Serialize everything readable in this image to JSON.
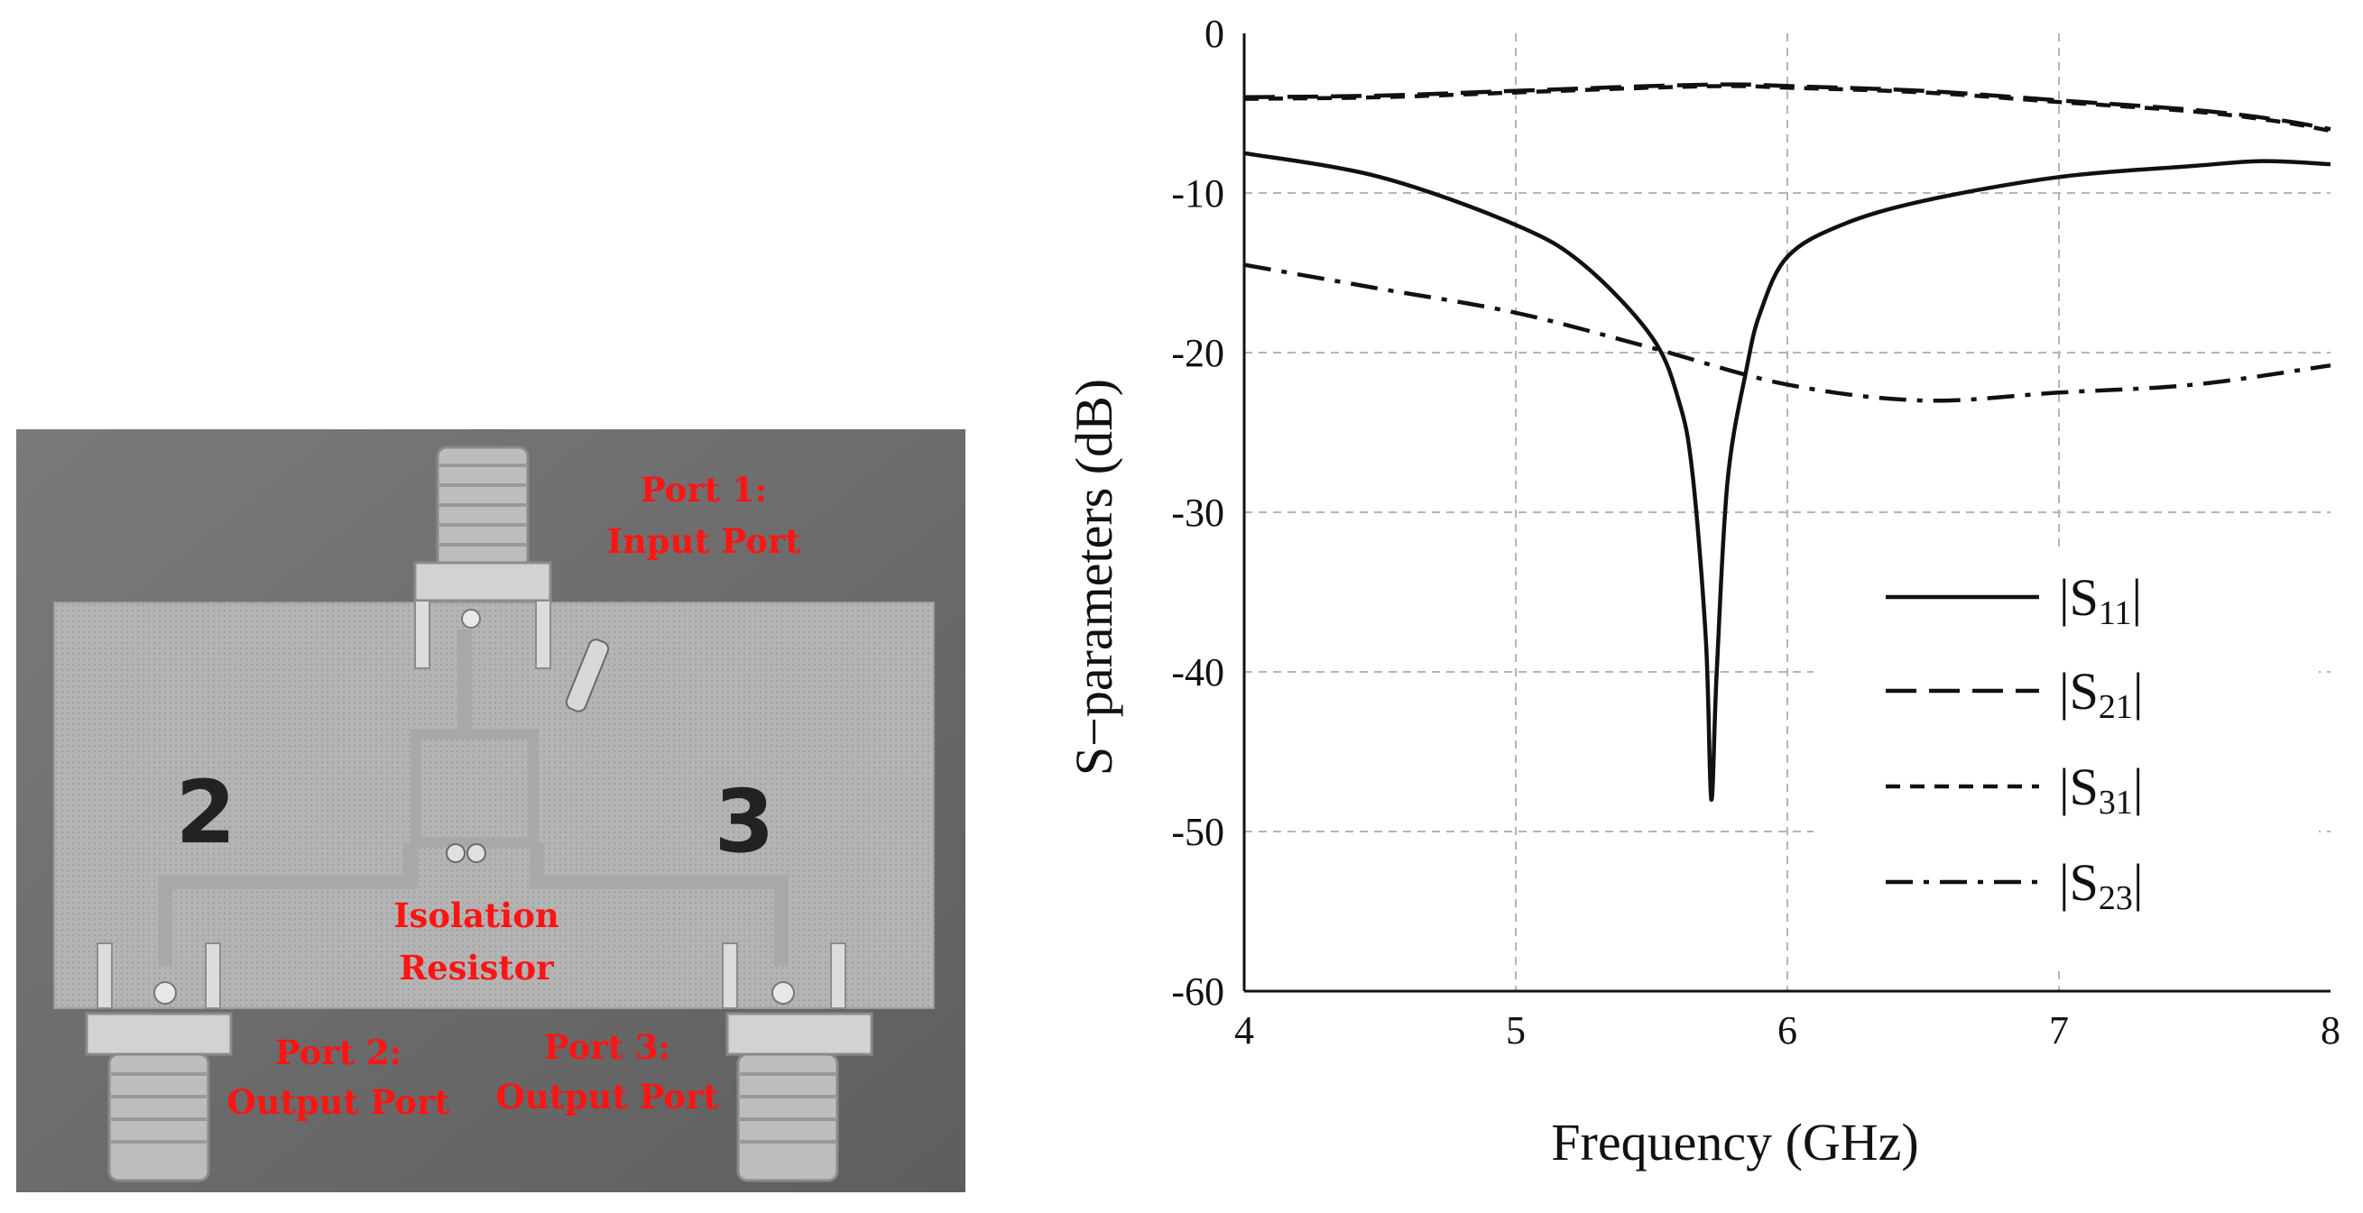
{
  "photo": {
    "labels": {
      "port1_line1": "Port 1:",
      "port1_line2": "Input Port",
      "num2": "2",
      "num3": "3",
      "iso_line1": "Isolation",
      "iso_line2": "Resistor",
      "port2_line1": "Port 2:",
      "port2_line2": "Output Port",
      "port3_line1": "Port 3:",
      "port3_line2": "Output Port"
    },
    "colors": {
      "label": "#ff1414",
      "background": "#6f6f6f",
      "board": "#b6b6b6"
    }
  },
  "chart_data": {
    "type": "line",
    "xlabel": "Frequency (GHz)",
    "ylabel": "S−parameters (dB)",
    "xlim": [
      4,
      8
    ],
    "ylim": [
      -60,
      0
    ],
    "xticks": [
      4,
      5,
      6,
      7,
      8
    ],
    "yticks": [
      0,
      -10,
      -20,
      -30,
      -40,
      -50,
      -60
    ],
    "grid": true,
    "legend_position": "bottom-right",
    "series": [
      {
        "name": "S11",
        "style": "solid",
        "x": [
          4.0,
          4.5,
          5.0,
          5.25,
          5.5,
          5.6,
          5.65,
          5.7,
          5.72,
          5.74,
          5.78,
          5.85,
          5.9,
          6.0,
          6.2,
          6.5,
          7.0,
          7.5,
          7.75,
          8.0
        ],
        "y": [
          -7.5,
          -9.0,
          -12.0,
          -14.5,
          -19.0,
          -23.0,
          -27.5,
          -38.0,
          -48.0,
          -40.0,
          -28.0,
          -21.0,
          -17.5,
          -14.0,
          -12.0,
          -10.5,
          -9.0,
          -8.3,
          -8.0,
          -8.2
        ]
      },
      {
        "name": "S21",
        "style": "longdash",
        "x": [
          4.0,
          4.5,
          5.0,
          5.5,
          5.8,
          6.0,
          6.5,
          7.0,
          7.5,
          7.8,
          8.0
        ],
        "y": [
          -4.0,
          -3.9,
          -3.6,
          -3.3,
          -3.2,
          -3.3,
          -3.6,
          -4.2,
          -4.8,
          -5.4,
          -6.0
        ]
      },
      {
        "name": "S31",
        "style": "shortdash",
        "x": [
          4.0,
          4.5,
          5.0,
          5.5,
          5.8,
          6.0,
          6.5,
          7.0,
          7.5,
          7.8,
          8.0
        ],
        "y": [
          -4.1,
          -4.0,
          -3.7,
          -3.4,
          -3.3,
          -3.4,
          -3.7,
          -4.3,
          -4.9,
          -5.5,
          -6.1
        ]
      },
      {
        "name": "S23",
        "style": "dashdot",
        "x": [
          4.0,
          4.5,
          5.0,
          5.5,
          6.0,
          6.5,
          7.0,
          7.5,
          8.0
        ],
        "y": [
          -14.5,
          -16.0,
          -17.5,
          -19.7,
          -22.0,
          -23.0,
          -22.5,
          -22.0,
          -20.8
        ]
      }
    ],
    "legend": [
      {
        "pre": "|S",
        "sub": "11",
        "post": "|"
      },
      {
        "pre": "|S",
        "sub": "21",
        "post": "|"
      },
      {
        "pre": "|S",
        "sub": "31",
        "post": "|"
      },
      {
        "pre": "|S",
        "sub": "23",
        "post": "|"
      }
    ]
  }
}
